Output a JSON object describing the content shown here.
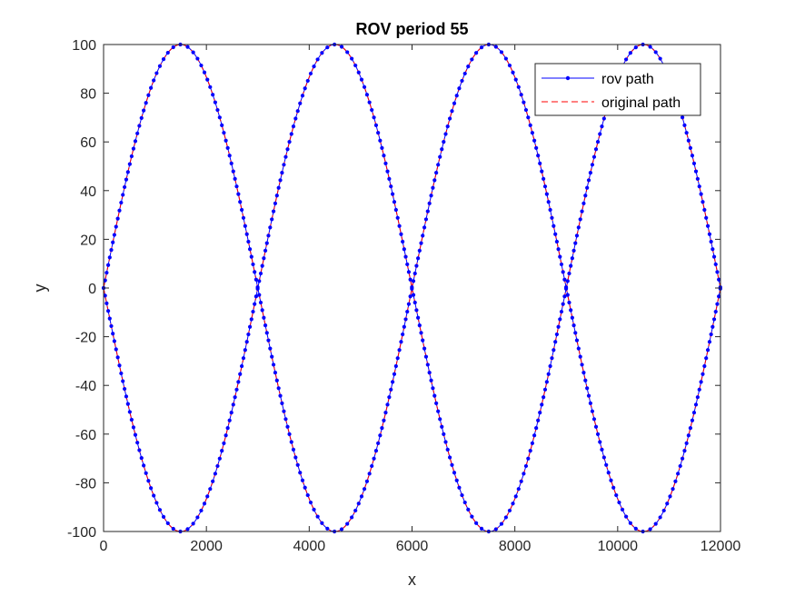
{
  "chart_data": {
    "type": "line",
    "title": "ROV period 55",
    "xlabel": "x",
    "ylabel": "y",
    "xlim": [
      0,
      12000
    ],
    "ylim": [
      -100,
      100
    ],
    "xticks": [
      "0",
      "2000",
      "4000",
      "6000",
      "8000",
      "10000",
      "12000"
    ],
    "yticks": [
      "100",
      "80",
      "60",
      "40",
      "20",
      "0",
      "-20",
      "-40",
      "-60",
      "-80",
      "-100"
    ],
    "grid": false,
    "legend_position": "top-right",
    "curve": {
      "description": "two mirrored sinusoids y = ±100·sin(2π·x/6000), x from 0 to 12000",
      "amplitude": 100,
      "wavelength": 6000,
      "x_start": 0,
      "x_end": 12000
    },
    "series": [
      {
        "name": "rov path",
        "style": "solid line with dot markers",
        "color": "#0000ff"
      },
      {
        "name": "original path",
        "style": "dashed line",
        "color": "#ff0000"
      }
    ]
  }
}
